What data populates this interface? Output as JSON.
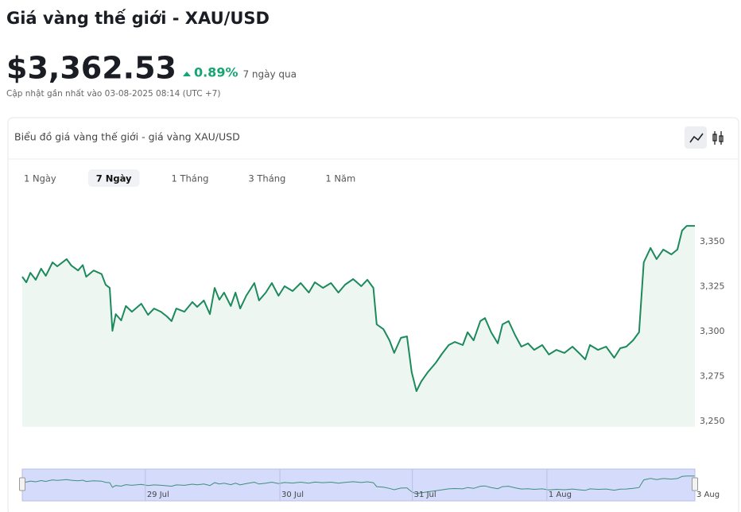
{
  "header": {
    "title": "Giá vàng thế giới - XAU/USD",
    "price": "$3,362.53",
    "change": "0.89%",
    "period": "7 ngày qua",
    "updated": "Cập nhật gần nhất vào 03-08-2025 08:14 (UTC +7)"
  },
  "card": {
    "title": "Biểu đồ giá vàng thế giới - giá vàng XAU/USD",
    "tabs": [
      "1 Ngày",
      "7 Ngày",
      "1 Tháng",
      "3 Tháng",
      "1 Năm"
    ],
    "active_tab": 1
  },
  "chart_data": {
    "type": "area",
    "color": "#1d8a5c",
    "fill": "#eef6f2",
    "x": [
      0,
      0.6,
      1.2,
      2.0,
      2.8,
      3.5,
      4.5,
      5.2,
      6.6,
      7.3,
      8.3,
      9.0,
      9.5,
      10.6,
      11.8,
      12.4,
      13.0,
      13.4,
      13.9,
      14.7,
      15.4,
      16.3,
      17.7,
      18.7,
      19.6,
      20.6,
      21.5,
      22.2,
      22.9,
      24.1,
      25.3,
      26.0,
      27.0,
      27.9,
      28.6,
      29.3,
      30.0,
      31.0,
      31.7,
      32.4,
      33.3,
      34.5,
      35.2,
      36.2,
      37.1,
      38.1,
      39.0,
      40.2,
      41.4,
      42.6,
      43.5,
      44.7,
      45.9,
      47.0,
      48.0,
      49.2,
      50.4,
      51.3,
      52.2,
      52.7,
      53.7,
      54.6,
      55.3,
      56.3,
      57.2,
      57.9,
      58.6,
      59.3,
      60.3,
      61.5,
      62.4,
      63.4,
      64.3,
      65.5,
      66.2,
      67.1,
      68.1,
      68.8,
      69.7,
      70.7,
      71.4,
      72.3,
      73.3,
      74.2,
      75.2,
      76.1,
      77.3,
      78.3,
      79.4,
      80.6,
      81.8,
      83.0,
      83.7,
      84.4,
      85.6,
      86.8,
      88.0,
      88.9,
      89.8,
      90.8,
      91.7,
      92.4,
      93.4,
      94.3,
      95.3,
      96.5,
      97.4,
      98.1,
      98.8,
      100
    ],
    "values": [
      3330.5,
      3327.4,
      3332.7,
      3328.8,
      3335,
      3331,
      3338.5,
      3336.3,
      3340.3,
      3336.7,
      3334,
      3337,
      3330.5,
      3334,
      3332,
      3326,
      3324.3,
      3300.4,
      3309.7,
      3306.2,
      3314.2,
      3311,
      3315.5,
      3309.3,
      3312.8,
      3311,
      3308.4,
      3305.8,
      3312.8,
      3311,
      3316.4,
      3313.7,
      3317.3,
      3309.7,
      3324.3,
      3317.7,
      3321.7,
      3314.2,
      3321.7,
      3312.8,
      3319.9,
      3327,
      3317.3,
      3321.7,
      3327,
      3319.9,
      3325.2,
      3322.5,
      3327,
      3321.7,
      3327.4,
      3324.3,
      3327,
      3321.7,
      3326.1,
      3329.2,
      3325.2,
      3328.8,
      3324.3,
      3304,
      3301.3,
      3295.1,
      3288.1,
      3296.5,
      3297.3,
      3277.4,
      3266.8,
      3272.1,
      3277.4,
      3282.7,
      3287.6,
      3292.5,
      3294.2,
      3292.5,
      3299.6,
      3295.1,
      3305.8,
      3307.5,
      3299.6,
      3293.4,
      3304,
      3305.8,
      3297.8,
      3291.6,
      3293.4,
      3289.8,
      3292.5,
      3287.2,
      3289.8,
      3288.1,
      3291.6,
      3287.2,
      3284.5,
      3292.5,
      3289.8,
      3291.6,
      3285.4,
      3290.7,
      3291.6,
      3295.1,
      3299.6,
      3338.5,
      3346.5,
      3340.3,
      3345.6,
      3342.9,
      3345.6,
      3356.2,
      3358.8,
      3358.8
    ],
    "xlim": [
      0,
      100
    ],
    "ylim": [
      3247,
      3378
    ],
    "yticks": [
      {
        "value": 3250,
        "label": "3,250"
      },
      {
        "value": 3275,
        "label": "3,275"
      },
      {
        "value": 3300,
        "label": "3,300"
      },
      {
        "value": 3325,
        "label": "3,325"
      },
      {
        "value": 3350,
        "label": "3,350"
      }
    ],
    "xticks": [
      {
        "value": 18.3,
        "label": "29 Jul"
      },
      {
        "value": 38.3,
        "label": "30 Jul"
      },
      {
        "value": 58.0,
        "label": "31 Jul"
      },
      {
        "value": 78.0,
        "label": "1 Aug"
      },
      {
        "value": 100,
        "label": "3 Aug"
      }
    ]
  }
}
